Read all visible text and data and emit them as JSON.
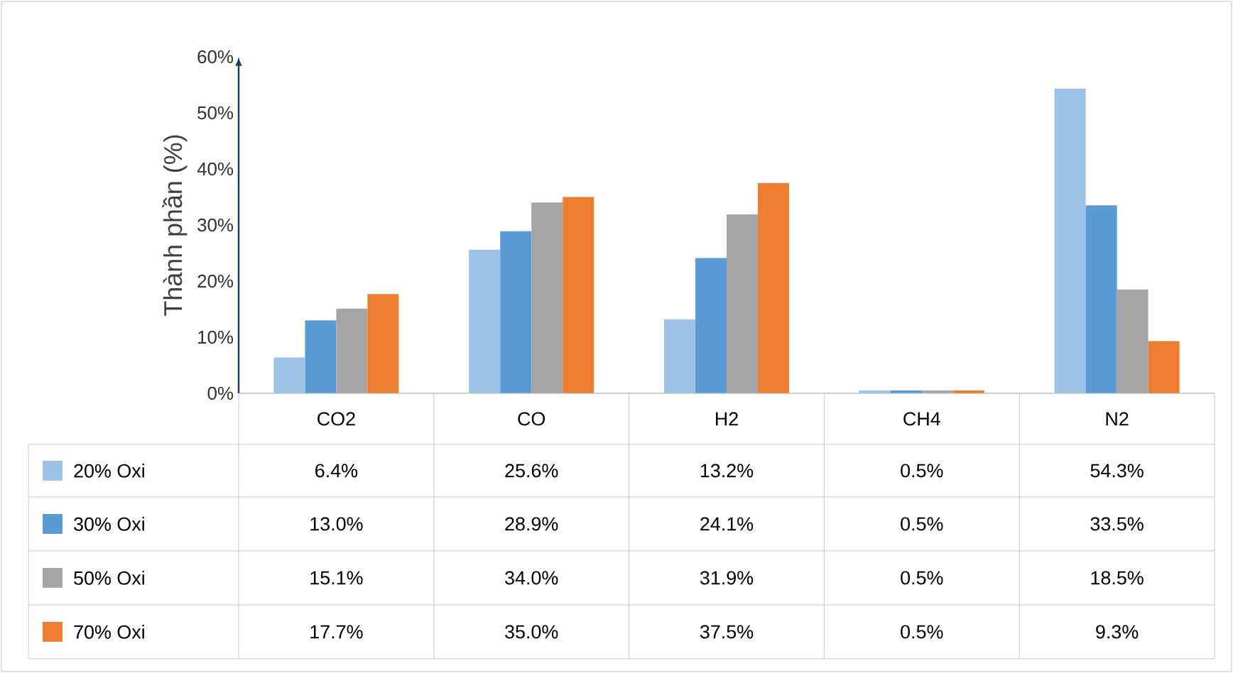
{
  "chart_data": {
    "type": "bar",
    "ylabel": "Thành phần (%)",
    "categories": [
      "CO2",
      "CO",
      "H2",
      "CH4",
      "N2"
    ],
    "series": [
      {
        "name": "20% Oxi",
        "color": "#9dc3e6",
        "values": [
          6.4,
          25.6,
          13.2,
          0.5,
          54.3
        ],
        "value_labels": [
          "6.4%",
          "25.6%",
          "13.2%",
          "0.5%",
          "54.3%"
        ]
      },
      {
        "name": "30% Oxi",
        "color": "#5b9bd5",
        "values": [
          13.0,
          28.9,
          24.1,
          0.5,
          33.5
        ],
        "value_labels": [
          "13.0%",
          "28.9%",
          "24.1%",
          "0.5%",
          "33.5%"
        ]
      },
      {
        "name": "50% Oxi",
        "color": "#a5a5a5",
        "values": [
          15.1,
          34.0,
          31.9,
          0.5,
          18.5
        ],
        "value_labels": [
          "15.1%",
          "34.0%",
          "31.9%",
          "0.5%",
          "18.5%"
        ]
      },
      {
        "name": "70% Oxi",
        "color": "#ed7d31",
        "values": [
          17.7,
          35.0,
          37.5,
          0.5,
          9.3
        ],
        "value_labels": [
          "17.7%",
          "35.0%",
          "37.5%",
          "0.5%",
          "9.3%"
        ]
      }
    ],
    "ylim": [
      0,
      60
    ],
    "yticks": [
      {
        "value": 0,
        "label": "0%"
      },
      {
        "value": 10,
        "label": "10%"
      },
      {
        "value": 20,
        "label": "20%"
      },
      {
        "value": 30,
        "label": "30%"
      },
      {
        "value": 40,
        "label": "40%"
      },
      {
        "value": 50,
        "label": "50%"
      },
      {
        "value": 60,
        "label": "60%"
      }
    ],
    "legend": "bottom"
  }
}
